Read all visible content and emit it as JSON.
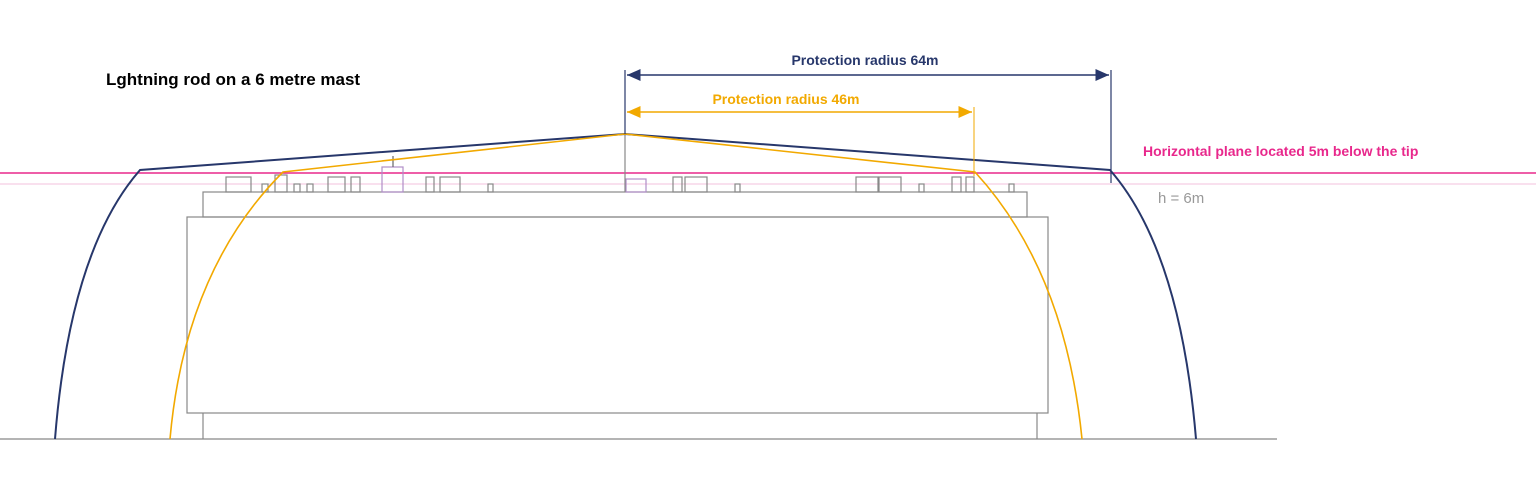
{
  "title": "Lghtning rod on a 6 metre mast",
  "labels": {
    "radius_large": "Protection radius 64m",
    "radius_small": "Protection radius 46m",
    "horizontal_plane": "Horizontal plane located 5m below the tip",
    "height": "h = 6m"
  }
}
